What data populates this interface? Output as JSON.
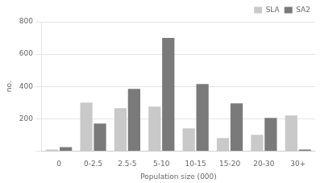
{
  "chart_data": {
    "type": "bar",
    "categories": [
      "0",
      "0-2.5",
      "2.5-5",
      "5-10",
      "10-15",
      "15-20",
      "20-30",
      "30+"
    ],
    "series": [
      {
        "name": "SLA",
        "color": "#c9c9c9",
        "values": [
          10,
          300,
          265,
          275,
          140,
          80,
          100,
          220
        ]
      },
      {
        "name": "SA2",
        "color": "#7a7a7a",
        "values": [
          25,
          170,
          385,
          700,
          415,
          295,
          205,
          10
        ]
      }
    ],
    "xlabel": "Population size (000)",
    "ylabel": "no.",
    "ylim": [
      0,
      800
    ],
    "yticks": [
      {
        "value": 0,
        "label": ""
      },
      200,
      400,
      600,
      800
    ],
    "grid": true,
    "legend": "top-right"
  }
}
